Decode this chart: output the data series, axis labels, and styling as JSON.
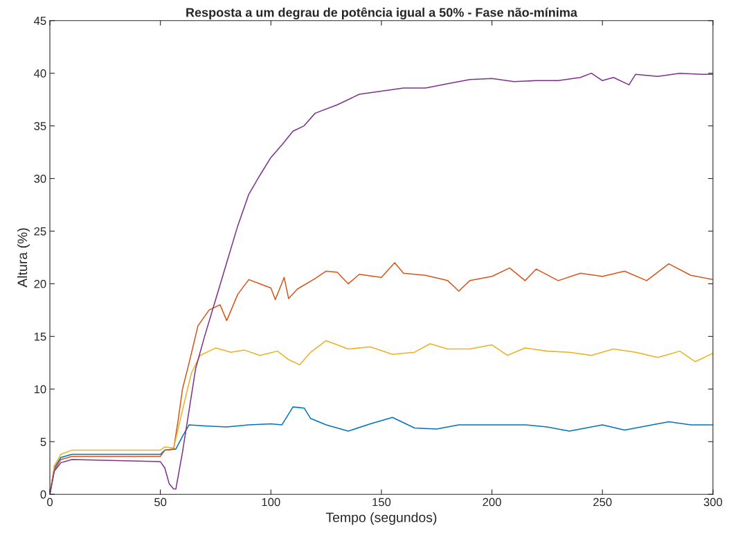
{
  "chart_data": {
    "type": "line",
    "title": "Resposta a um degrau de potência igual a 50% - Fase não-mínima",
    "xlabel": "Tempo (segundos)",
    "ylabel": "Altura (%)",
    "xlim": [
      0,
      300
    ],
    "ylim": [
      0,
      45
    ],
    "xticks": [
      0,
      50,
      100,
      150,
      200,
      250,
      300
    ],
    "yticks": [
      0,
      5,
      10,
      15,
      20,
      25,
      30,
      35,
      40,
      45
    ],
    "grid": false,
    "legend": false,
    "line_style": "solid",
    "marker": "none",
    "series": [
      {
        "color": "#0072bd",
        "x": [
          0,
          2,
          5,
          10,
          50,
          52,
          57,
          60,
          63,
          70,
          80,
          90,
          100,
          105,
          110,
          115,
          118,
          125,
          135,
          145,
          155,
          165,
          175,
          185,
          200,
          215,
          225,
          235,
          240,
          250,
          260,
          270,
          280,
          290,
          300
        ],
        "values": [
          0,
          2.5,
          3.5,
          3.8,
          3.8,
          4.2,
          4.3,
          5.5,
          6.6,
          6.5,
          6.4,
          6.6,
          6.7,
          6.6,
          8.3,
          8.2,
          7.2,
          6.6,
          6.0,
          6.7,
          7.3,
          6.3,
          6.2,
          6.6,
          6.6,
          6.6,
          6.4,
          6.0,
          6.2,
          6.6,
          6.1,
          6.5,
          6.9,
          6.6,
          6.6
        ]
      },
      {
        "color": "#d95319",
        "x": [
          0,
          2,
          5,
          10,
          50,
          52,
          56,
          58,
          60,
          63,
          67,
          72,
          77,
          80,
          85,
          90,
          95,
          100,
          102,
          106,
          108,
          112,
          120,
          125,
          130,
          135,
          140,
          150,
          156,
          160,
          170,
          180,
          185,
          190,
          200,
          208,
          215,
          220,
          230,
          240,
          250,
          260,
          270,
          280,
          290,
          300
        ],
        "values": [
          0,
          2.3,
          3.3,
          3.6,
          3.6,
          4.2,
          4.3,
          7,
          10,
          12.5,
          16,
          17.5,
          18,
          16.5,
          19,
          20.4,
          20,
          19.6,
          18.5,
          20.6,
          18.6,
          19.5,
          20.5,
          21.2,
          21.1,
          20.0,
          20.9,
          20.6,
          22.0,
          21.0,
          20.8,
          20.3,
          19.3,
          20.3,
          20.7,
          21.5,
          20.3,
          21.4,
          20.3,
          21.0,
          20.7,
          21.2,
          20.3,
          21.9,
          20.8,
          20.4
        ]
      },
      {
        "color": "#edb120",
        "x": [
          0,
          2,
          5,
          10,
          50,
          52,
          56,
          60,
          64,
          68,
          75,
          82,
          88,
          95,
          103,
          108,
          113,
          118,
          125,
          135,
          145,
          155,
          165,
          172,
          180,
          190,
          200,
          207,
          215,
          225,
          235,
          245,
          255,
          265,
          275,
          285,
          292,
          300
        ],
        "values": [
          0,
          2.7,
          3.8,
          4.2,
          4.2,
          4.5,
          4.4,
          8,
          11.5,
          13.2,
          13.9,
          13.5,
          13.7,
          13.2,
          13.6,
          12.8,
          12.3,
          13.5,
          14.6,
          13.8,
          14.0,
          13.3,
          13.5,
          14.3,
          13.8,
          13.8,
          14.2,
          13.2,
          13.9,
          13.6,
          13.5,
          13.2,
          13.8,
          13.5,
          13.0,
          13.6,
          12.6,
          13.4
        ]
      },
      {
        "color": "#7e2f8e",
        "x": [
          0,
          2,
          5,
          10,
          50,
          52,
          54,
          56,
          57,
          60,
          63,
          66,
          70,
          75,
          80,
          85,
          90,
          95,
          100,
          105,
          110,
          115,
          120,
          130,
          140,
          150,
          160,
          170,
          180,
          190,
          200,
          210,
          220,
          230,
          240,
          245,
          250,
          255,
          262,
          265,
          275,
          285,
          295,
          300
        ],
        "values": [
          0,
          2.2,
          3.0,
          3.3,
          3.1,
          2.5,
          1.0,
          0.5,
          0.5,
          4,
          8,
          12,
          15,
          18.5,
          22,
          25.5,
          28.5,
          30.3,
          32,
          33.2,
          34.5,
          35,
          36.2,
          37,
          38,
          38.3,
          38.6,
          38.6,
          39,
          39.4,
          39.5,
          39.2,
          39.3,
          39.3,
          39.6,
          40.0,
          39.3,
          39.6,
          38.9,
          39.9,
          39.7,
          40.0,
          39.9,
          39.9
        ]
      }
    ]
  }
}
